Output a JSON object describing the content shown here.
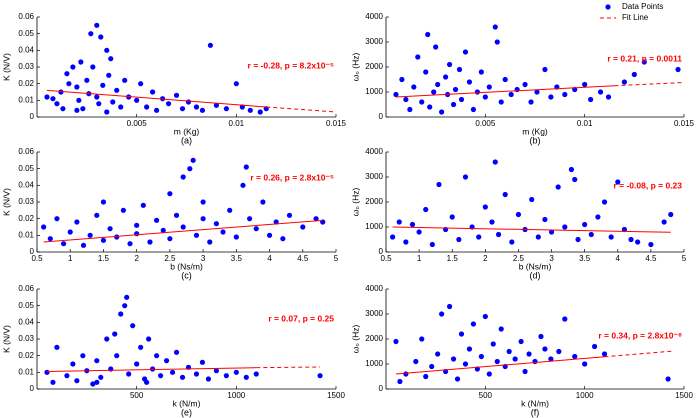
{
  "chart_data": [
    {
      "type": "scatter",
      "caption": "(a)",
      "xlabel": "m (Kg)",
      "ylabel": "K (N/V)",
      "annotation": "r = -0.28, p = 8.2x10⁻⁵",
      "xlim": [
        0,
        0.015
      ],
      "xticks": [
        0.005,
        0.01,
        0.015
      ],
      "ylim": [
        0,
        0.06
      ],
      "yticks": [
        0,
        0.01,
        0.02,
        0.03,
        0.04,
        0.05,
        0.06
      ],
      "series": [
        {
          "color": "#0000ff",
          "x": [
            0.0005,
            0.0008,
            0.001,
            0.0012,
            0.0013,
            0.0015,
            0.0016,
            0.0018,
            0.002,
            0.0021,
            0.0022,
            0.0023,
            0.0025,
            0.0026,
            0.0027,
            0.0028,
            0.003,
            0.003,
            0.0031,
            0.0032,
            0.0033,
            0.0035,
            0.0036,
            0.0037,
            0.0038,
            0.004,
            0.0042,
            0.0044,
            0.0046,
            0.005,
            0.0052,
            0.0055,
            0.0058,
            0.006,
            0.0063,
            0.0066,
            0.007,
            0.0073,
            0.0076,
            0.008,
            0.0083,
            0.0087,
            0.009,
            0.0095,
            0.01,
            0.0103,
            0.0107,
            0.0112,
            0.0115,
            0.002,
            0.0035
          ],
          "values": [
            0.012,
            0.011,
            0.008,
            0.015,
            0.005,
            0.026,
            0.02,
            0.03,
            0.018,
            0.01,
            0.033,
            0.005,
            0.022,
            0.014,
            0.05,
            0.03,
            0.055,
            0.012,
            0.008,
            0.048,
            0.019,
            0.04,
            0.025,
            0.035,
            0.009,
            0.016,
            0.006,
            0.022,
            0.012,
            0.01,
            0.02,
            0.006,
            0.015,
            0.004,
            0.011,
            0.008,
            0.013,
            0.005,
            0.009,
            0.006,
            0.004,
            0.043,
            0.007,
            0.005,
            0.02,
            0.006,
            0.004,
            0.003,
            0.005,
            0.004,
            0.003
          ]
        },
        {
          "color": "#ff0000",
          "x": [
            0.0005,
            0.0115,
            0.015
          ],
          "values": [
            0.016,
            0.006,
            0.003
          ],
          "linestyle": [
            "solid",
            "dashed"
          ]
        }
      ]
    },
    {
      "type": "scatter",
      "caption": "(b)",
      "xlabel": "m (Kg)",
      "ylabel": "ω₀ (Hz)",
      "annotation": "r = 0.21, p = 0.0011",
      "legend": "upper right",
      "xlim": [
        0,
        0.015
      ],
      "xticks": [
        0.005,
        0.01,
        0.015
      ],
      "ylim": [
        0,
        4000
      ],
      "yticks": [
        0,
        1000,
        2000,
        3000,
        4000
      ],
      "series": [
        {
          "name": "Data Points",
          "color": "#0000ff",
          "x": [
            0.0005,
            0.0008,
            0.001,
            0.0012,
            0.0014,
            0.0016,
            0.0018,
            0.002,
            0.0021,
            0.0022,
            0.0024,
            0.0025,
            0.0026,
            0.0028,
            0.003,
            0.0031,
            0.0032,
            0.0034,
            0.0035,
            0.0037,
            0.0038,
            0.004,
            0.0042,
            0.0044,
            0.0046,
            0.0048,
            0.005,
            0.0052,
            0.0055,
            0.0056,
            0.0058,
            0.006,
            0.0063,
            0.0066,
            0.007,
            0.0073,
            0.0076,
            0.008,
            0.0083,
            0.0086,
            0.009,
            0.0095,
            0.01,
            0.0103,
            0.0108,
            0.0112,
            0.012,
            0.0125,
            0.013,
            0.0147
          ],
          "values": [
            900,
            1500,
            700,
            300,
            1200,
            2400,
            600,
            1800,
            3300,
            400,
            1000,
            2800,
            1300,
            200,
            1600,
            900,
            2100,
            500,
            1100,
            1900,
            700,
            2600,
            1400,
            300,
            1000,
            1800,
            800,
            1200,
            3600,
            3000,
            600,
            1500,
            900,
            1100,
            1300,
            600,
            1000,
            1900,
            800,
            1200,
            900,
            1100,
            1300,
            700,
            1000,
            800,
            1400,
            1700,
            2200,
            1900
          ]
        },
        {
          "name": "Fit Line",
          "color": "#ff0000",
          "x": [
            0.0005,
            0.0115,
            0.015
          ],
          "values": [
            800,
            1250,
            1380
          ],
          "linestyle": [
            "solid",
            "dashed"
          ]
        }
      ]
    },
    {
      "type": "scatter",
      "caption": "(c)",
      "xlabel": "b (Ns/m)",
      "ylabel": "K (N/V)",
      "annotation": "r = 0.26, p = 2.8x10⁻⁵",
      "xlim": [
        0.5,
        5
      ],
      "xticks": [
        0.5,
        1,
        1.5,
        2,
        2.5,
        3,
        3.5,
        4,
        4.5,
        5
      ],
      "ylim": [
        0,
        0.06
      ],
      "yticks": [
        0,
        0.01,
        0.02,
        0.03,
        0.04,
        0.05,
        0.06
      ],
      "series": [
        {
          "color": "#0000ff",
          "x": [
            0.6,
            0.7,
            0.8,
            0.9,
            1.0,
            1.1,
            1.2,
            1.3,
            1.4,
            1.5,
            1.5,
            1.6,
            1.7,
            1.8,
            1.9,
            2.0,
            2.0,
            2.1,
            2.2,
            2.3,
            2.4,
            2.5,
            2.5,
            2.6,
            2.7,
            2.7,
            2.8,
            2.85,
            2.9,
            3.0,
            3.0,
            3.1,
            3.2,
            3.3,
            3.4,
            3.5,
            3.6,
            3.65,
            3.7,
            3.8,
            3.9,
            4.0,
            4.1,
            4.2,
            4.3,
            4.5,
            4.7,
            4.8
          ],
          "values": [
            0.015,
            0.008,
            0.02,
            0.005,
            0.012,
            0.018,
            0.004,
            0.01,
            0.022,
            0.007,
            0.03,
            0.014,
            0.009,
            0.025,
            0.005,
            0.016,
            0.011,
            0.028,
            0.006,
            0.019,
            0.013,
            0.035,
            0.008,
            0.022,
            0.015,
            0.045,
            0.05,
            0.055,
            0.01,
            0.02,
            0.03,
            0.006,
            0.017,
            0.012,
            0.025,
            0.009,
            0.04,
            0.051,
            0.02,
            0.014,
            0.03,
            0.01,
            0.018,
            0.008,
            0.022,
            0.015,
            0.02,
            0.018
          ]
        },
        {
          "color": "#ff0000",
          "x": [
            0.6,
            4.8
          ],
          "values": [
            0.006,
            0.019
          ],
          "linestyle": [
            "solid"
          ]
        }
      ]
    },
    {
      "type": "scatter",
      "caption": "(d)",
      "xlabel": "b (Ns/m)",
      "ylabel": "ω₀ (Hz)",
      "annotation": "r = -0.08, p = 0.23",
      "xlim": [
        0.5,
        5
      ],
      "xticks": [
        0.5,
        1,
        1.5,
        2,
        2.5,
        3,
        3.5,
        4,
        4.5,
        5
      ],
      "ylim": [
        0,
        4000
      ],
      "yticks": [
        0,
        1000,
        2000,
        3000,
        4000
      ],
      "series": [
        {
          "color": "#0000ff",
          "x": [
            0.6,
            0.7,
            0.8,
            0.9,
            1.0,
            1.1,
            1.2,
            1.3,
            1.4,
            1.5,
            1.6,
            1.7,
            1.8,
            1.9,
            2.0,
            2.1,
            2.15,
            2.2,
            2.3,
            2.4,
            2.5,
            2.6,
            2.7,
            2.8,
            2.9,
            3.0,
            3.1,
            3.2,
            3.3,
            3.35,
            3.4,
            3.5,
            3.6,
            3.7,
            3.8,
            3.9,
            4.0,
            4.1,
            4.2,
            4.3,
            4.5,
            4.7,
            4.8
          ],
          "values": [
            600,
            1200,
            400,
            1100,
            800,
            1700,
            300,
            2700,
            900,
            1400,
            500,
            3000,
            1000,
            600,
            1800,
            1200,
            3600,
            700,
            2300,
            400,
            1500,
            900,
            2100,
            600,
            1300,
            800,
            2600,
            1000,
            3300,
            2900,
            500,
            1100,
            700,
            1400,
            2000,
            600,
            2800,
            900,
            500,
            400,
            300,
            1200,
            1500
          ]
        },
        {
          "color": "#ff0000",
          "x": [
            0.6,
            4.8
          ],
          "values": [
            1000,
            790
          ],
          "linestyle": [
            "solid"
          ]
        }
      ]
    },
    {
      "type": "scatter",
      "caption": "(e)",
      "xlabel": "k (N/m)",
      "ylabel": "K (N/V)",
      "annotation": "r = 0.07, p = 0.25",
      "xlim": [
        0,
        1500
      ],
      "xticks": [
        500,
        1000,
        1500
      ],
      "ylim": [
        0,
        0.06
      ],
      "yticks": [
        0,
        0.01,
        0.02,
        0.03,
        0.04,
        0.05,
        0.06
      ],
      "series": [
        {
          "color": "#0000ff",
          "x": [
            50,
            80,
            100,
            150,
            180,
            200,
            230,
            250,
            280,
            300,
            320,
            350,
            370,
            390,
            400,
            420,
            440,
            450,
            460,
            480,
            500,
            520,
            540,
            560,
            580,
            600,
            620,
            650,
            680,
            700,
            730,
            760,
            800,
            830,
            860,
            900,
            950,
            1000,
            1050,
            1100,
            1420,
            300,
            550
          ],
          "values": [
            0.01,
            0.004,
            0.025,
            0.008,
            0.015,
            0.005,
            0.02,
            0.011,
            0.003,
            0.017,
            0.007,
            0.03,
            0.012,
            0.033,
            0.02,
            0.045,
            0.05,
            0.055,
            0.009,
            0.038,
            0.015,
            0.025,
            0.006,
            0.03,
            0.012,
            0.02,
            0.008,
            0.017,
            0.01,
            0.022,
            0.007,
            0.013,
            0.009,
            0.016,
            0.006,
            0.011,
            0.008,
            0.01,
            0.007,
            0.009,
            0.008,
            0.004,
            0.004
          ]
        },
        {
          "color": "#ff0000",
          "x": [
            50,
            1100,
            1420
          ],
          "values": [
            0.0105,
            0.0128,
            0.0132
          ],
          "linestyle": [
            "solid",
            "dashed"
          ]
        }
      ]
    },
    {
      "type": "scatter",
      "caption": "(f)",
      "xlabel": "k (N/m)",
      "ylabel": "ω₀ (Hz)",
      "annotation": "r = 0.34, p = 2.8x10⁻⁸",
      "xlim": [
        0,
        1500
      ],
      "xticks": [
        500,
        1000,
        1500
      ],
      "ylim": [
        0,
        4000
      ],
      "yticks": [
        0,
        1000,
        2000,
        3000,
        4000
      ],
      "series": [
        {
          "color": "#0000ff",
          "x": [
            50,
            70,
            100,
            150,
            180,
            200,
            230,
            260,
            280,
            300,
            320,
            340,
            360,
            380,
            400,
            420,
            440,
            460,
            480,
            500,
            520,
            540,
            560,
            580,
            600,
            620,
            650,
            680,
            700,
            720,
            750,
            780,
            800,
            830,
            870,
            900,
            950,
            1000,
            1050,
            1100,
            1420
          ],
          "values": [
            1900,
            300,
            600,
            1100,
            2000,
            500,
            900,
            1400,
            3000,
            700,
            3300,
            1200,
            400,
            2200,
            1000,
            1600,
            2600,
            800,
            1300,
            2900,
            600,
            1800,
            1100,
            2400,
            900,
            1500,
            1200,
            1900,
            700,
            1400,
            1100,
            2100,
            1600,
            1200,
            1500,
            2800,
            1300,
            1000,
            1700,
            1400,
            400
          ]
        },
        {
          "color": "#ff0000",
          "x": [
            50,
            1100,
            1450
          ],
          "values": [
            600,
            1290,
            1520
          ],
          "linestyle": [
            "solid",
            "dashed"
          ]
        }
      ]
    }
  ]
}
